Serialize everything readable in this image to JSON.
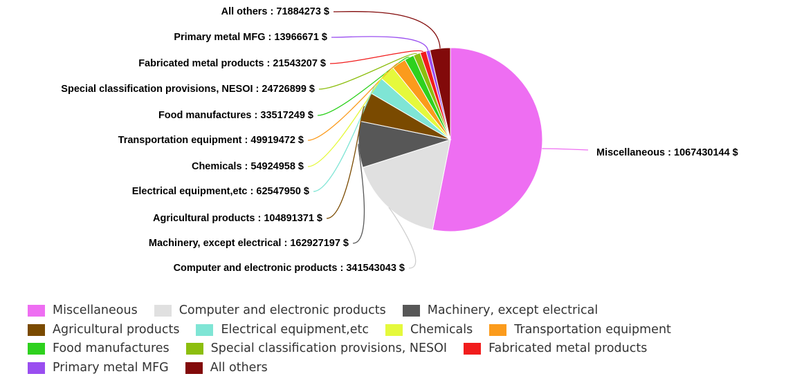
{
  "chart_data": {
    "type": "pie",
    "currency": "$",
    "slices": [
      {
        "name": "Miscellaneous",
        "value": 1067430144,
        "color": "#ee6ef2"
      },
      {
        "name": "Computer and electronic products",
        "value": 341543043,
        "color": "#e0e0e0"
      },
      {
        "name": "Machinery, except electrical",
        "value": 162927197,
        "color": "#575757"
      },
      {
        "name": "Agricultural products",
        "value": 104891371,
        "color": "#7a4a00"
      },
      {
        "name": "Electrical equipment,etc",
        "value": 62547950,
        "color": "#7fe5d5"
      },
      {
        "name": "Chemicals",
        "value": 54924958,
        "color": "#e5f93c"
      },
      {
        "name": "Transportation equipment",
        "value": 49919472,
        "color": "#fb9b1c"
      },
      {
        "name": "Food manufactures",
        "value": 33517249,
        "color": "#2ed11e"
      },
      {
        "name": "Special classification provisions, NESOI",
        "value": 24726899,
        "color": "#8cbe0e"
      },
      {
        "name": "Fabricated metal products",
        "value": 21543207,
        "color": "#f11c1c"
      },
      {
        "name": "Primary metal MFG",
        "value": 13966671,
        "color": "#9a4ef0"
      },
      {
        "name": "All others",
        "value": 71884273,
        "color": "#820a0a"
      }
    ],
    "legend_position": "bottom"
  }
}
